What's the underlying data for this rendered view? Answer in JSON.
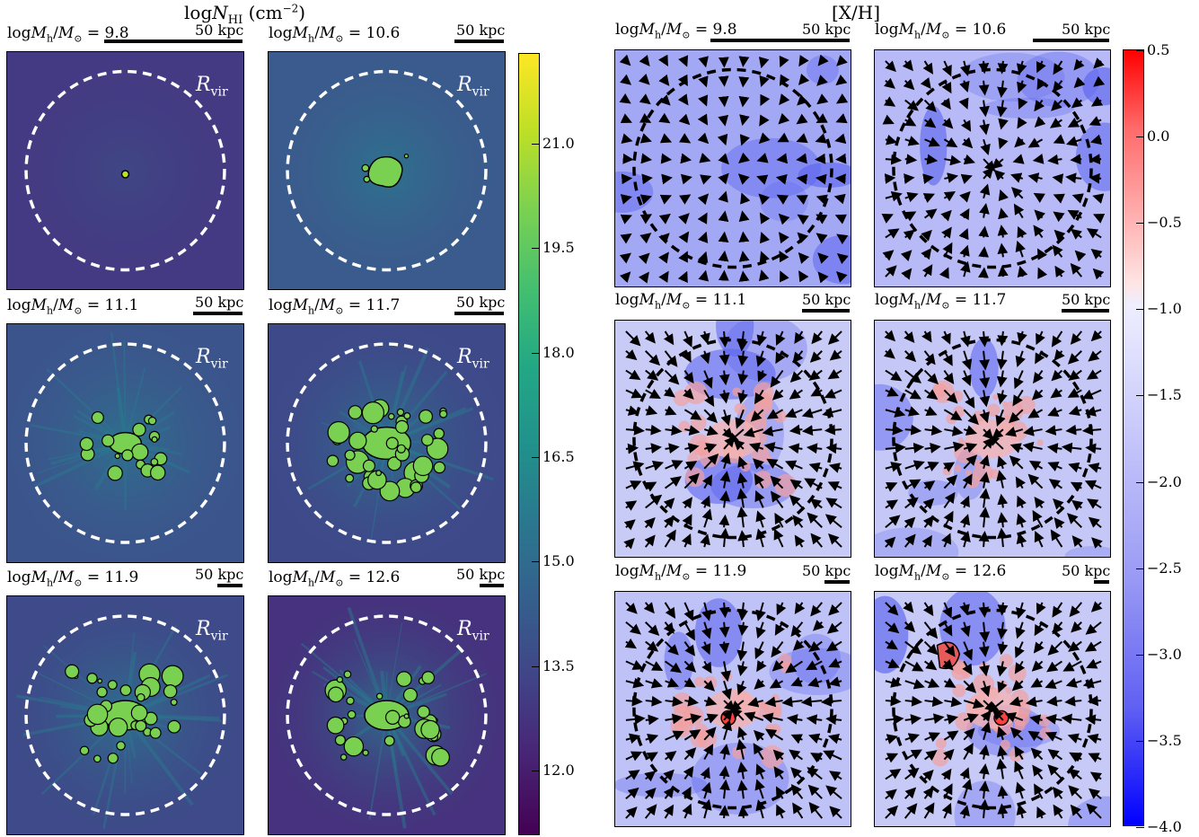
{
  "left": {
    "title_pre": "log",
    "title_var": "N",
    "title_sub": "HI",
    "title_unit": " (cm",
    "title_exp": "−2",
    "title_close": ")",
    "rvir_label": "R",
    "rvir_sub": "vir",
    "panels": [
      {
        "label": "= 9.8",
        "scale": "50 kpc"
      },
      {
        "label": "= 10.6",
        "scale": "50 kpc"
      },
      {
        "label": "= 11.1",
        "scale": "50 kpc"
      },
      {
        "label": "= 11.7",
        "scale": "50 kpc"
      },
      {
        "label": "= 11.9",
        "scale": "50 kpc"
      },
      {
        "label": "= 12.6",
        "scale": "50 kpc"
      }
    ],
    "colorbar_ticks": [
      "21.0",
      "19.5",
      "18.0",
      "16.5",
      "15.0",
      "13.5",
      "12.0"
    ],
    "colormap": "viridis"
  },
  "right": {
    "title": "[X/H]",
    "panels": [
      {
        "label": "= 9.8",
        "scale": "50 kpc"
      },
      {
        "label": "= 10.6",
        "scale": "50 kpc"
      },
      {
        "label": "= 11.1",
        "scale": "50 kpc"
      },
      {
        "label": "= 11.7",
        "scale": "50 kpc"
      },
      {
        "label": "= 11.9",
        "scale": "50 kpc"
      },
      {
        "label": "= 12.6",
        "scale": "50 kpc"
      }
    ],
    "colorbar_ticks": [
      "0.5",
      "0.0",
      "−0.5",
      "−1.0",
      "−1.5",
      "−2.0",
      "−2.5",
      "−3.0",
      "−3.5",
      "−4.0"
    ],
    "colormap": "bwr"
  },
  "panel_label_prefix": "log",
  "panel_label_var": "M",
  "panel_label_sub": "h",
  "panel_label_div": "/",
  "panel_label_sun": "M",
  "panel_label_sun_sub": "⊙"
}
